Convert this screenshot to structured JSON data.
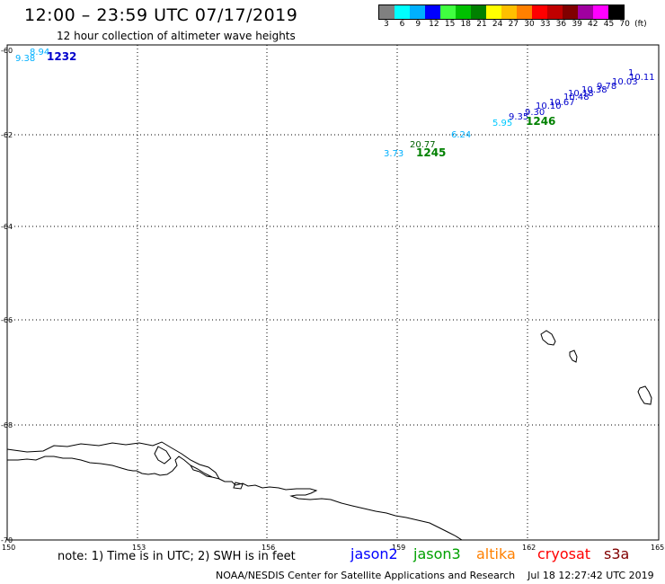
{
  "header": {
    "title": "12:00 – 23:59 UTC 07/17/2019",
    "subtitle": "12 hour collection of altimeter wave heights"
  },
  "legend": {
    "colors": [
      "#808080",
      "#00ffff",
      "#00b0ff",
      "#0000ff",
      "#40ff40",
      "#00c000",
      "#008000",
      "#ffff00",
      "#ffc000",
      "#ff8000",
      "#ff0000",
      "#c00000",
      "#800000",
      "#a000a0",
      "#ff00ff",
      "#000000"
    ],
    "labels": [
      "3",
      "6",
      "9",
      "12",
      "15",
      "18",
      "21",
      "24",
      "27",
      "30",
      "33",
      "36",
      "39",
      "42",
      "45",
      "70",
      "(ft)"
    ]
  },
  "map": {
    "lon_ticks": [
      "150",
      "153",
      "156",
      "159",
      "162",
      "165"
    ],
    "lat_ticks": [
      "-60",
      "-62",
      "-64",
      "-66",
      "-68",
      "-70"
    ],
    "pass_labels": [
      {
        "text": "1232",
        "color": "#0000cc"
      },
      {
        "text": "1245",
        "color": "#008000"
      },
      {
        "text": "1246",
        "color": "#008000"
      }
    ],
    "observations": [
      {
        "text": "9.38",
        "color": "#00b0ff"
      },
      {
        "text": "8.94",
        "color": "#00b0ff"
      },
      {
        "text": "3.73",
        "color": "#00b0ff"
      },
      {
        "text": "20.77",
        "color": "#006000"
      },
      {
        "text": "6.24",
        "color": "#00b0ff"
      },
      {
        "text": "5.95",
        "color": "#00c8ff"
      },
      {
        "text": "9.35",
        "color": "#0000cc"
      },
      {
        "text": "9.30",
        "color": "#0000cc"
      },
      {
        "text": "10.10",
        "color": "#0000cc"
      },
      {
        "text": "10.67",
        "color": "#0000cc"
      },
      {
        "text": "10.48",
        "color": "#0000cc"
      },
      {
        "text": "10.18",
        "color": "#0000cc"
      },
      {
        "text": "10.38",
        "color": "#0000cc"
      },
      {
        "text": "9.78",
        "color": "#0000cc"
      },
      {
        "text": "10.03",
        "color": "#0000cc"
      },
      {
        "text": "10.11",
        "color": "#0000cc"
      },
      {
        "text": "1",
        "color": "#0000cc"
      }
    ]
  },
  "note": "note: 1) Time is in UTC; 2) SWH is in feet",
  "satellites": [
    {
      "name": "jason2",
      "color": "#0000ff"
    },
    {
      "name": "jason3",
      "color": "#00a000"
    },
    {
      "name": "altika",
      "color": "#ff8000"
    },
    {
      "name": "cryosat",
      "color": "#ff0000"
    },
    {
      "name": "s3a",
      "color": "#800000"
    }
  ],
  "footer": {
    "agency": "NOAA/NESDIS Center for Satellite Applications and Research",
    "timestamp": "Jul 18 12:27:42 UTC 2019"
  }
}
